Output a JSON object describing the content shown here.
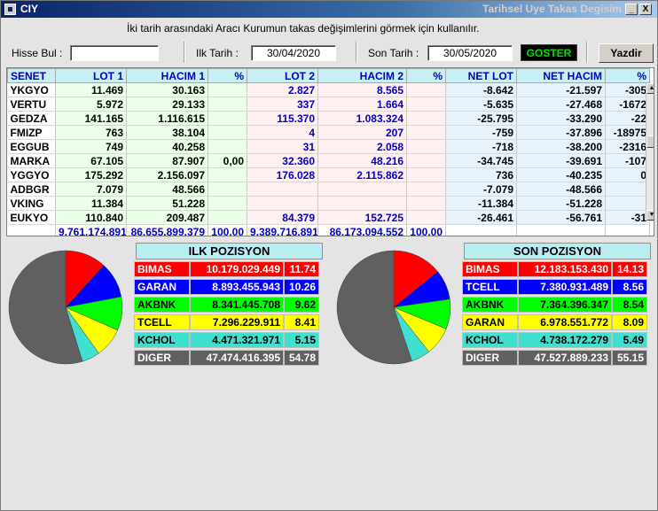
{
  "window": {
    "title": "CIY",
    "subtitle": "Tarihsel Uye Takas Degisim",
    "min_label": "_",
    "close_label": "X",
    "hint": "İki tarih arasındaki  Aracı Kurumun takas değişimlerini görmek için kullanılır."
  },
  "toolbar": {
    "hisse_label": "Hisse Bul :",
    "hisse_value": "",
    "ilk_label": "Ilk Tarih :",
    "ilk_value": "30/04/2020",
    "son_label": "Son Tarih :",
    "son_value": "30/05/2020",
    "goster_label": "GOSTER",
    "yazdir_label": "Yazdir"
  },
  "grid": {
    "columns": [
      "SENET",
      "LOT 1",
      "HACIM 1",
      "%",
      "LOT 2",
      "HACIM 2",
      "%",
      "NET LOT",
      "NET HACIM",
      "%"
    ],
    "rows": [
      [
        "YKGYO",
        "11.469",
        "30.163",
        "",
        "2.827",
        "8.565",
        "",
        "-8.642",
        "-21.597",
        "-305"
      ],
      [
        "VERTU",
        "5.972",
        "29.133",
        "",
        "337",
        "1.664",
        "",
        "-5.635",
        "-27.468",
        "-1672"
      ],
      [
        "GEDZA",
        "141.165",
        "1.116.615",
        "",
        "115.370",
        "1.083.324",
        "",
        "-25.795",
        "-33.290",
        "-22"
      ],
      [
        "FMIZP",
        "763",
        "38.104",
        "",
        "4",
        "207",
        "",
        "-759",
        "-37.896",
        "-18975"
      ],
      [
        "EGGUB",
        "749",
        "40.258",
        "",
        "31",
        "2.058",
        "",
        "-718",
        "-38.200",
        "-2316"
      ],
      [
        "MARKA",
        "67.105",
        "87.907",
        "0,00",
        "32.360",
        "48.216",
        "",
        "-34.745",
        "-39.691",
        "-107"
      ],
      [
        "YGGYO",
        "175.292",
        "2.156.097",
        "",
        "176.028",
        "2.115.862",
        "",
        "736",
        "-40.235",
        "0"
      ],
      [
        "ADBGR",
        "7.079",
        "48.566",
        "",
        "",
        "",
        "",
        "-7.079",
        "-48.566",
        ""
      ],
      [
        "VKING",
        "11.384",
        "51.228",
        "",
        "",
        "",
        "",
        "-11.384",
        "-51.228",
        ""
      ],
      [
        "EUKYO",
        "110.840",
        "209.487",
        "",
        "84.379",
        "152.725",
        "",
        "-26.461",
        "-56.761",
        "-31"
      ]
    ],
    "total": [
      "",
      "9.761.174.891",
      "86.655.899.379",
      "100,00",
      "9.389.716.891",
      "86.173.094.552",
      "100,00",
      "",
      "",
      ""
    ]
  },
  "ilk": {
    "title": "ILK POZISYON",
    "items": [
      {
        "name": "BIMAS",
        "value": "10.179.029.449",
        "pct": "11.74",
        "pct_num": 11.74,
        "bg": "#ff0000",
        "fg": "#ffffff"
      },
      {
        "name": "GARAN",
        "value": "8.893.455.943",
        "pct": "10.26",
        "pct_num": 10.26,
        "bg": "#0000ff",
        "fg": "#ffffff"
      },
      {
        "name": "AKBNK",
        "value": "8.341.445.708",
        "pct": "9.62",
        "pct_num": 9.62,
        "bg": "#00ff00",
        "fg": "#000000"
      },
      {
        "name": "TCELL",
        "value": "7.296.229.911",
        "pct": "8.41",
        "pct_num": 8.41,
        "bg": "#ffff00",
        "fg": "#000000"
      },
      {
        "name": "KCHOL",
        "value": "4.471.321.971",
        "pct": "5.15",
        "pct_num": 5.15,
        "bg": "#40e0d0",
        "fg": "#000000"
      },
      {
        "name": "DIGER",
        "value": "47.474.416.395",
        "pct": "54.78",
        "pct_num": 54.78,
        "bg": "#606060",
        "fg": "#ffffff"
      }
    ]
  },
  "son": {
    "title": "SON POZISYON",
    "items": [
      {
        "name": "BIMAS",
        "value": "12.183.153.430",
        "pct": "14.13",
        "pct_num": 14.13,
        "bg": "#ff0000",
        "fg": "#ffffff"
      },
      {
        "name": "TCELL",
        "value": "7.380.931.489",
        "pct": "8.56",
        "pct_num": 8.56,
        "bg": "#0000ff",
        "fg": "#ffffff"
      },
      {
        "name": "AKBNK",
        "value": "7.364.396.347",
        "pct": "8.54",
        "pct_num": 8.54,
        "bg": "#00ff00",
        "fg": "#000000"
      },
      {
        "name": "GARAN",
        "value": "6.978.551.772",
        "pct": "8.09",
        "pct_num": 8.09,
        "bg": "#ffff00",
        "fg": "#000000"
      },
      {
        "name": "KCHOL",
        "value": "4.738.172.279",
        "pct": "5.49",
        "pct_num": 5.49,
        "bg": "#40e0d0",
        "fg": "#000000"
      },
      {
        "name": "DIGER",
        "value": "47.527.889.233",
        "pct": "55.15",
        "pct_num": 55.15,
        "bg": "#606060",
        "fg": "#ffffff"
      }
    ]
  }
}
